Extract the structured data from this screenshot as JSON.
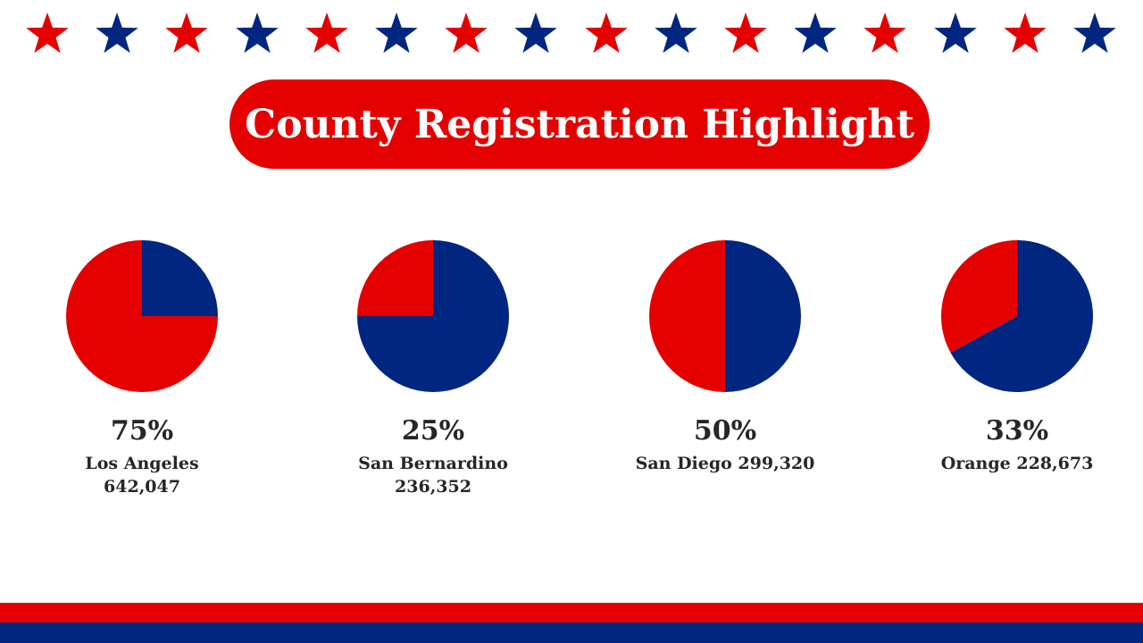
{
  "colors": {
    "red": "#e50000",
    "blue": "#002680",
    "text": "#262626",
    "background": "#ffffff"
  },
  "stars": {
    "count": 16,
    "pattern": [
      "red",
      "blue"
    ],
    "icon": "star-icon"
  },
  "title": "County Registration Highlight",
  "chart_data": [
    {
      "type": "pie",
      "percent_label": "75%",
      "county_label": "Los Angeles\n642,047",
      "slices": [
        {
          "color": "red",
          "value": 75
        },
        {
          "color": "blue",
          "value": 25
        }
      ]
    },
    {
      "type": "pie",
      "percent_label": "25%",
      "county_label": "San Bernardino\n236,352",
      "slices": [
        {
          "color": "red",
          "value": 25
        },
        {
          "color": "blue",
          "value": 75
        }
      ]
    },
    {
      "type": "pie",
      "percent_label": "50%",
      "county_label": "San Diego 299,320",
      "slices": [
        {
          "color": "red",
          "value": 50
        },
        {
          "color": "blue",
          "value": 50
        }
      ]
    },
    {
      "type": "pie",
      "percent_label": "33%",
      "county_label": "Orange 228,673",
      "slices": [
        {
          "color": "red",
          "value": 33
        },
        {
          "color": "blue",
          "value": 67
        }
      ]
    }
  ],
  "footer": {
    "stripes": [
      "red",
      "blue"
    ]
  }
}
